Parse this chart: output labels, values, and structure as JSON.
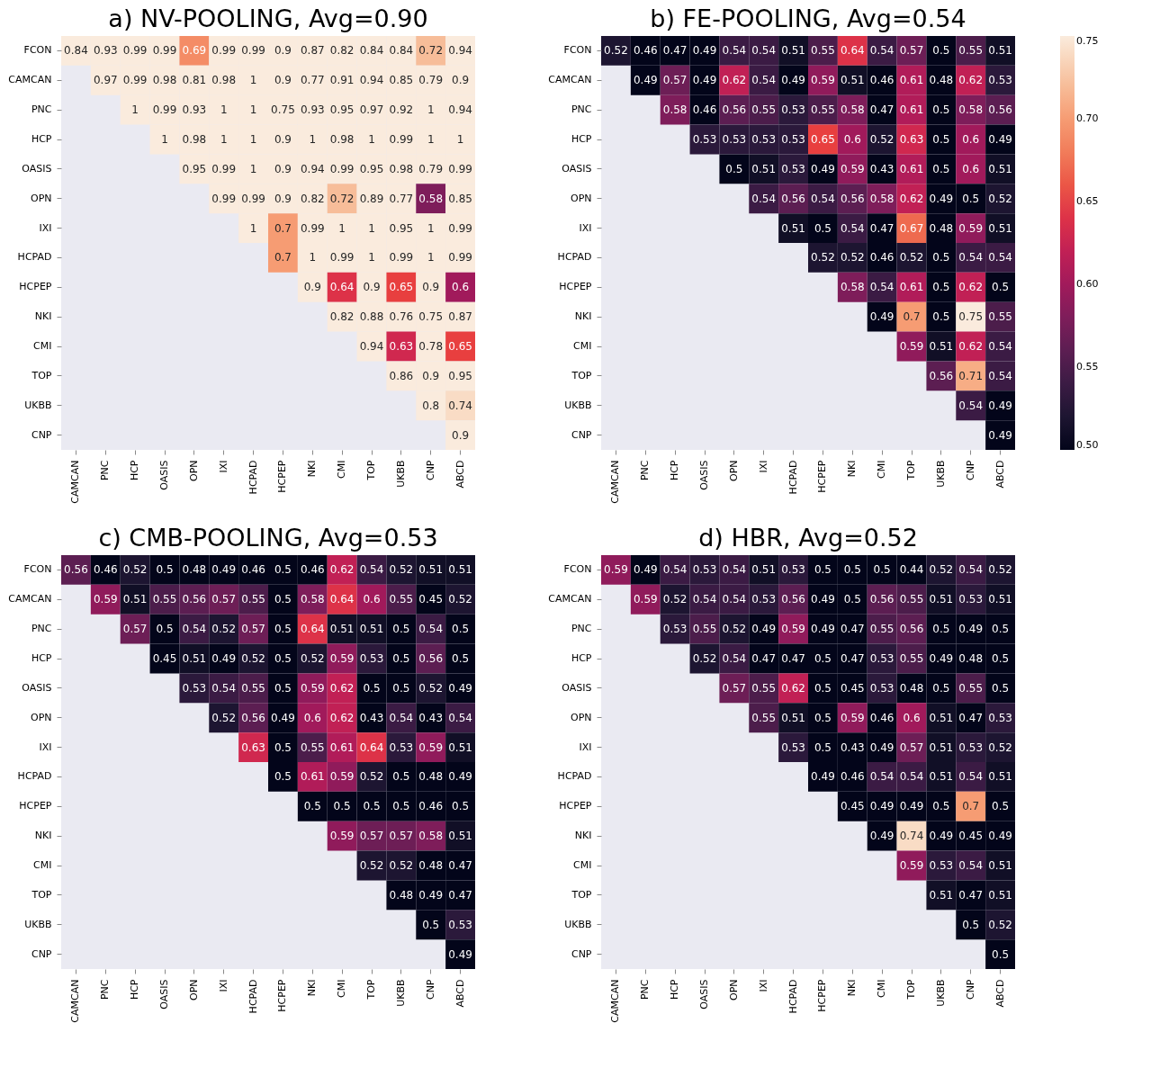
{
  "chart_data": [
    {
      "type": "heatmap",
      "title": "a) NV-POOLING, Avg=0.90",
      "data_labels": true,
      "categories": [
        "CAMCAN",
        "PNC",
        "HCP",
        "OASIS",
        "OPN",
        "IXI",
        "HCPAD",
        "HCPEP",
        "NKI",
        "CMI",
        "TOP",
        "UKBB",
        "CNP",
        "ABCD"
      ],
      "y_categories": [
        "FCON",
        "CAMCAN",
        "PNC",
        "HCP",
        "OASIS",
        "OPN",
        "IXI",
        "HCPAD",
        "HCPEP",
        "NKI",
        "CMI",
        "TOP",
        "UKBB",
        "CNP"
      ],
      "cells": [
        [
          0.84,
          0.93,
          0.99,
          0.99,
          0.69,
          0.99,
          0.99,
          0.9,
          0.87,
          0.82,
          0.84,
          0.84,
          0.72,
          0.94
        ],
        [
          null,
          0.97,
          0.99,
          0.98,
          0.81,
          0.98,
          1,
          0.9,
          0.77,
          0.91,
          0.94,
          0.85,
          0.79,
          0.9
        ],
        [
          null,
          null,
          1,
          0.99,
          0.93,
          1,
          1,
          0.75,
          0.93,
          0.95,
          0.97,
          0.92,
          1,
          0.94
        ],
        [
          null,
          null,
          null,
          1,
          0.98,
          1,
          1,
          0.9,
          1,
          0.98,
          1,
          0.99,
          1,
          1
        ],
        [
          null,
          null,
          null,
          null,
          0.95,
          0.99,
          1,
          0.9,
          0.94,
          0.99,
          0.95,
          0.98,
          0.79,
          0.99
        ],
        [
          null,
          null,
          null,
          null,
          null,
          0.99,
          0.99,
          0.9,
          0.82,
          0.72,
          0.89,
          0.77,
          0.58,
          0.85
        ],
        [
          null,
          null,
          null,
          null,
          null,
          null,
          1,
          0.7,
          0.99,
          1,
          1,
          0.95,
          1,
          0.99
        ],
        [
          null,
          null,
          null,
          null,
          null,
          null,
          null,
          0.7,
          1,
          0.99,
          1,
          0.99,
          1,
          0.99
        ],
        [
          null,
          null,
          null,
          null,
          null,
          null,
          null,
          null,
          0.9,
          0.64,
          0.9,
          0.65,
          0.9,
          0.6
        ],
        [
          null,
          null,
          null,
          null,
          null,
          null,
          null,
          null,
          null,
          0.82,
          0.88,
          0.76,
          0.75,
          0.87
        ],
        [
          null,
          null,
          null,
          null,
          null,
          null,
          null,
          null,
          null,
          null,
          0.94,
          0.63,
          0.78,
          0.65
        ],
        [
          null,
          null,
          null,
          null,
          null,
          null,
          null,
          null,
          null,
          null,
          null,
          0.86,
          0.9,
          0.95
        ],
        [
          null,
          null,
          null,
          null,
          null,
          null,
          null,
          null,
          null,
          null,
          null,
          null,
          0.8,
          0.74
        ],
        [
          null,
          null,
          null,
          null,
          null,
          null,
          null,
          null,
          null,
          null,
          null,
          null,
          null,
          0.9
        ]
      ]
    },
    {
      "type": "heatmap",
      "title": "b) FE-POOLING, Avg=0.54",
      "data_labels": true,
      "clim": [
        0.5,
        0.75
      ],
      "cticks": [
        {
          "value": 0.5,
          "label": "0.50"
        },
        {
          "value": 0.55,
          "label": "0.55"
        },
        {
          "value": 0.6,
          "label": "0.60"
        },
        {
          "value": 0.65,
          "label": "0.65"
        },
        {
          "value": 0.7,
          "label": "0.70"
        },
        {
          "value": 0.75,
          "label": "0.75"
        }
      ],
      "categories": [
        "CAMCAN",
        "PNC",
        "HCP",
        "OASIS",
        "OPN",
        "IXI",
        "HCPAD",
        "HCPEP",
        "NKI",
        "CMI",
        "TOP",
        "UKBB",
        "CNP",
        "ABCD"
      ],
      "y_categories": [
        "FCON",
        "CAMCAN",
        "PNC",
        "HCP",
        "OASIS",
        "OPN",
        "IXI",
        "HCPAD",
        "HCPEP",
        "NKI",
        "CMI",
        "TOP",
        "UKBB",
        "CNP"
      ],
      "cells": [
        [
          0.52,
          0.46,
          0.47,
          0.49,
          0.54,
          0.54,
          0.51,
          0.55,
          0.64,
          0.54,
          0.57,
          0.5,
          0.55,
          0.51
        ],
        [
          null,
          0.49,
          0.57,
          0.49,
          0.62,
          0.54,
          0.49,
          0.59,
          0.51,
          0.46,
          0.61,
          0.48,
          0.62,
          0.53
        ],
        [
          null,
          null,
          0.58,
          0.46,
          0.56,
          0.55,
          0.53,
          0.55,
          0.58,
          0.47,
          0.61,
          0.5,
          0.58,
          0.56
        ],
        [
          null,
          null,
          null,
          0.53,
          0.53,
          0.53,
          0.53,
          0.65,
          0.6,
          0.52,
          0.63,
          0.5,
          0.6,
          0.49
        ],
        [
          null,
          null,
          null,
          null,
          0.5,
          0.51,
          0.53,
          0.49,
          0.59,
          0.43,
          0.61,
          0.5,
          0.6,
          0.51
        ],
        [
          null,
          null,
          null,
          null,
          null,
          0.54,
          0.56,
          0.54,
          0.56,
          0.58,
          0.62,
          0.49,
          0.5,
          0.52
        ],
        [
          null,
          null,
          null,
          null,
          null,
          null,
          0.51,
          0.5,
          0.54,
          0.47,
          0.67,
          0.48,
          0.59,
          0.51
        ],
        [
          null,
          null,
          null,
          null,
          null,
          null,
          null,
          0.52,
          0.52,
          0.46,
          0.52,
          0.5,
          0.54,
          0.54
        ],
        [
          null,
          null,
          null,
          null,
          null,
          null,
          null,
          null,
          0.58,
          0.54,
          0.61,
          0.5,
          0.62,
          0.5
        ],
        [
          null,
          null,
          null,
          null,
          null,
          null,
          null,
          null,
          null,
          0.49,
          0.7,
          0.5,
          0.75,
          0.55
        ],
        [
          null,
          null,
          null,
          null,
          null,
          null,
          null,
          null,
          null,
          null,
          0.59,
          0.51,
          0.62,
          0.54
        ],
        [
          null,
          null,
          null,
          null,
          null,
          null,
          null,
          null,
          null,
          null,
          null,
          0.56,
          0.71,
          0.54
        ],
        [
          null,
          null,
          null,
          null,
          null,
          null,
          null,
          null,
          null,
          null,
          null,
          null,
          0.54,
          0.49
        ],
        [
          null,
          null,
          null,
          null,
          null,
          null,
          null,
          null,
          null,
          null,
          null,
          null,
          null,
          0.49
        ]
      ]
    },
    {
      "type": "heatmap",
      "title": "c) CMB-POOLING, Avg=0.53",
      "data_labels": true,
      "categories": [
        "CAMCAN",
        "PNC",
        "HCP",
        "OASIS",
        "OPN",
        "IXI",
        "HCPAD",
        "HCPEP",
        "NKI",
        "CMI",
        "TOP",
        "UKBB",
        "CNP",
        "ABCD"
      ],
      "y_categories": [
        "FCON",
        "CAMCAN",
        "PNC",
        "HCP",
        "OASIS",
        "OPN",
        "IXI",
        "HCPAD",
        "HCPEP",
        "NKI",
        "CMI",
        "TOP",
        "UKBB",
        "CNP"
      ],
      "cells": [
        [
          0.56,
          0.46,
          0.52,
          0.5,
          0.48,
          0.49,
          0.46,
          0.5,
          0.46,
          0.62,
          0.54,
          0.52,
          0.51,
          0.51
        ],
        [
          null,
          0.59,
          0.51,
          0.55,
          0.56,
          0.57,
          0.55,
          0.5,
          0.58,
          0.64,
          0.6,
          0.55,
          0.45,
          0.52
        ],
        [
          null,
          null,
          0.57,
          0.5,
          0.54,
          0.52,
          0.57,
          0.5,
          0.64,
          0.51,
          0.51,
          0.5,
          0.54,
          0.5
        ],
        [
          null,
          null,
          null,
          0.45,
          0.51,
          0.49,
          0.52,
          0.5,
          0.52,
          0.59,
          0.53,
          0.5,
          0.56,
          0.5
        ],
        [
          null,
          null,
          null,
          null,
          0.53,
          0.54,
          0.55,
          0.5,
          0.59,
          0.62,
          0.5,
          0.5,
          0.52,
          0.49
        ],
        [
          null,
          null,
          null,
          null,
          null,
          0.52,
          0.56,
          0.49,
          0.6,
          0.62,
          0.43,
          0.54,
          0.43,
          0.54
        ],
        [
          null,
          null,
          null,
          null,
          null,
          null,
          0.63,
          0.5,
          0.55,
          0.61,
          0.64,
          0.53,
          0.59,
          0.51
        ],
        [
          null,
          null,
          null,
          null,
          null,
          null,
          null,
          0.5,
          0.61,
          0.59,
          0.52,
          0.5,
          0.48,
          0.49
        ],
        [
          null,
          null,
          null,
          null,
          null,
          null,
          null,
          null,
          0.5,
          0.5,
          0.5,
          0.5,
          0.46,
          0.5
        ],
        [
          null,
          null,
          null,
          null,
          null,
          null,
          null,
          null,
          null,
          0.59,
          0.57,
          0.57,
          0.58,
          0.51
        ],
        [
          null,
          null,
          null,
          null,
          null,
          null,
          null,
          null,
          null,
          null,
          0.52,
          0.52,
          0.48,
          0.47
        ],
        [
          null,
          null,
          null,
          null,
          null,
          null,
          null,
          null,
          null,
          null,
          null,
          0.48,
          0.49,
          0.47
        ],
        [
          null,
          null,
          null,
          null,
          null,
          null,
          null,
          null,
          null,
          null,
          null,
          null,
          0.5,
          0.53
        ],
        [
          null,
          null,
          null,
          null,
          null,
          null,
          null,
          null,
          null,
          null,
          null,
          null,
          null,
          0.49
        ]
      ]
    },
    {
      "type": "heatmap",
      "title": "d) HBR, Avg=0.52",
      "data_labels": true,
      "categories": [
        "CAMCAN",
        "PNC",
        "HCP",
        "OASIS",
        "OPN",
        "IXI",
        "HCPAD",
        "HCPEP",
        "NKI",
        "CMI",
        "TOP",
        "UKBB",
        "CNP",
        "ABCD"
      ],
      "y_categories": [
        "FCON",
        "CAMCAN",
        "PNC",
        "HCP",
        "OASIS",
        "OPN",
        "IXI",
        "HCPAD",
        "HCPEP",
        "NKI",
        "CMI",
        "TOP",
        "UKBB",
        "CNP"
      ],
      "cells": [
        [
          0.59,
          0.49,
          0.54,
          0.53,
          0.54,
          0.51,
          0.53,
          0.5,
          0.5,
          0.5,
          0.44,
          0.52,
          0.54,
          0.52
        ],
        [
          null,
          0.59,
          0.52,
          0.54,
          0.54,
          0.53,
          0.56,
          0.49,
          0.5,
          0.56,
          0.55,
          0.51,
          0.53,
          0.51
        ],
        [
          null,
          null,
          0.53,
          0.55,
          0.52,
          0.49,
          0.59,
          0.49,
          0.47,
          0.55,
          0.56,
          0.5,
          0.49,
          0.5
        ],
        [
          null,
          null,
          null,
          0.52,
          0.54,
          0.47,
          0.47,
          0.5,
          0.47,
          0.53,
          0.55,
          0.49,
          0.48,
          0.5
        ],
        [
          null,
          null,
          null,
          null,
          0.57,
          0.55,
          0.62,
          0.5,
          0.45,
          0.53,
          0.48,
          0.5,
          0.55,
          0.5
        ],
        [
          null,
          null,
          null,
          null,
          null,
          0.55,
          0.51,
          0.5,
          0.59,
          0.46,
          0.6,
          0.51,
          0.47,
          0.53
        ],
        [
          null,
          null,
          null,
          null,
          null,
          null,
          0.53,
          0.5,
          0.43,
          0.49,
          0.57,
          0.51,
          0.53,
          0.52
        ],
        [
          null,
          null,
          null,
          null,
          null,
          null,
          null,
          0.49,
          0.46,
          0.54,
          0.54,
          0.51,
          0.54,
          0.51
        ],
        [
          null,
          null,
          null,
          null,
          null,
          null,
          null,
          null,
          0.45,
          0.49,
          0.49,
          0.5,
          0.7,
          0.5
        ],
        [
          null,
          null,
          null,
          null,
          null,
          null,
          null,
          null,
          null,
          0.49,
          0.74,
          0.49,
          0.45,
          0.49
        ],
        [
          null,
          null,
          null,
          null,
          null,
          null,
          null,
          null,
          null,
          null,
          0.59,
          0.53,
          0.54,
          0.51
        ],
        [
          null,
          null,
          null,
          null,
          null,
          null,
          null,
          null,
          null,
          null,
          null,
          0.51,
          0.47,
          0.51
        ],
        [
          null,
          null,
          null,
          null,
          null,
          null,
          null,
          null,
          null,
          null,
          null,
          null,
          0.5,
          0.52
        ],
        [
          null,
          null,
          null,
          null,
          null,
          null,
          null,
          null,
          null,
          null,
          null,
          null,
          null,
          0.5
        ]
      ]
    }
  ]
}
